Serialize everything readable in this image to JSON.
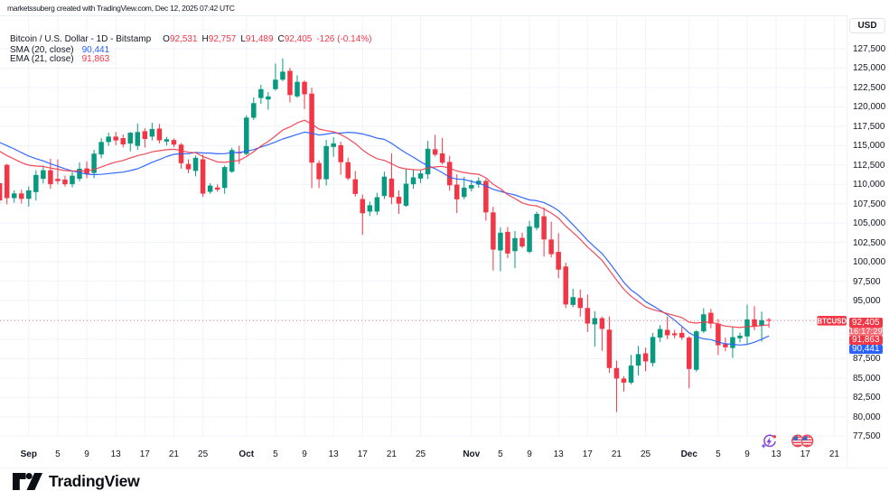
{
  "header": {
    "caption": "marketssuberg created with TradingView.com, Dec 12, 2025 07:42 UTC"
  },
  "legend": {
    "title": "Bitcoin / U.S. Dollar - 1D - Bitstamp",
    "ohlc": [
      {
        "k": "O",
        "v": "92,531"
      },
      {
        "k": "H",
        "v": "92,757"
      },
      {
        "k": "L",
        "v": "91,489"
      },
      {
        "k": "C",
        "v": "92,405"
      }
    ],
    "change": "-126 (-0.14%)",
    "sma_label": "SMA (20, close)",
    "sma_value": "90,441",
    "ema_label": "EMA (21, close)",
    "ema_value": "91,863"
  },
  "badges": {
    "symbol": "BTCUSD",
    "price": "92,405",
    "countdown": "16:17:29",
    "ema": "91,863",
    "sma": "90,441"
  },
  "price_axis": {
    "currency": "USD",
    "ticks": [
      77500,
      80000,
      82500,
      85000,
      87500,
      90000,
      92500,
      95000,
      97500,
      100000,
      102500,
      105000,
      107500,
      110000,
      112500,
      115000,
      117500,
      120000,
      122500,
      125000,
      127500
    ]
  },
  "time_axis": {
    "ticks": [
      {
        "label": "Sep",
        "bar": 4,
        "month": true
      },
      {
        "label": "5",
        "bar": 8
      },
      {
        "label": "9",
        "bar": 12
      },
      {
        "label": "13",
        "bar": 16
      },
      {
        "label": "17",
        "bar": 20
      },
      {
        "label": "21",
        "bar": 24
      },
      {
        "label": "25",
        "bar": 28
      },
      {
        "label": "Oct",
        "bar": 34,
        "month": true
      },
      {
        "label": "5",
        "bar": 38
      },
      {
        "label": "9",
        "bar": 42
      },
      {
        "label": "13",
        "bar": 46
      },
      {
        "label": "17",
        "bar": 50
      },
      {
        "label": "21",
        "bar": 54
      },
      {
        "label": "25",
        "bar": 58
      },
      {
        "label": "Nov",
        "bar": 65,
        "month": true
      },
      {
        "label": "5",
        "bar": 69
      },
      {
        "label": "9",
        "bar": 73
      },
      {
        "label": "13",
        "bar": 77
      },
      {
        "label": "17",
        "bar": 81
      },
      {
        "label": "21",
        "bar": 85
      },
      {
        "label": "25",
        "bar": 89
      },
      {
        "label": "Dec",
        "bar": 95,
        "month": true
      },
      {
        "label": "5",
        "bar": 99
      },
      {
        "label": "9",
        "bar": 103
      },
      {
        "label": "13",
        "bar": 107
      },
      {
        "label": "17",
        "bar": 111
      },
      {
        "label": "21",
        "bar": 115
      }
    ]
  },
  "footer": {
    "brand": "TradingView"
  },
  "icons": {
    "ai_event": "ai-spark-lightning-icon",
    "us_events": "us-flag-economic-events-icon"
  },
  "colors": {
    "up": "#089981",
    "down": "#f23645",
    "sma": "#2962ff",
    "ema": "#f23645",
    "grid": "#f0f3fa",
    "text": "#131722",
    "axis_border": "#e0e3eb",
    "price_badge": "#f23645",
    "countdown_badge": "#f56d76",
    "sma_badge": "#2962ff",
    "background": "#ffffff"
  },
  "chart_data": {
    "type": "candlestick",
    "title": "Bitcoin / U.S. Dollar",
    "exchange": "Bitstamp",
    "interval": "1D",
    "ylabel": "USD",
    "ylim": [
      77500,
      131800
    ],
    "grid": true,
    "legend_position": "top-left",
    "price_line": 92405,
    "dates": [
      "Aug 28",
      "Aug 29",
      "Aug 30",
      "Aug 31",
      "Sep 1",
      "Sep 2",
      "Sep 3",
      "Sep 4",
      "Sep 5",
      "Sep 6",
      "Sep 7",
      "Sep 8",
      "Sep 9",
      "Sep 10",
      "Sep 11",
      "Sep 12",
      "Sep 13",
      "Sep 14",
      "Sep 15",
      "Sep 16",
      "Sep 17",
      "Sep 18",
      "Sep 19",
      "Sep 20",
      "Sep 21",
      "Sep 22",
      "Sep 23",
      "Sep 24",
      "Sep 25",
      "Sep 26",
      "Sep 27",
      "Sep 28",
      "Sep 29",
      "Sep 30",
      "Oct 1",
      "Oct 2",
      "Oct 3",
      "Oct 4",
      "Oct 5",
      "Oct 6",
      "Oct 7",
      "Oct 8",
      "Oct 9",
      "Oct 10",
      "Oct 11",
      "Oct 12",
      "Oct 13",
      "Oct 14",
      "Oct 15",
      "Oct 16",
      "Oct 17",
      "Oct 18",
      "Oct 19",
      "Oct 20",
      "Oct 21",
      "Oct 22",
      "Oct 23",
      "Oct 24",
      "Oct 25",
      "Oct 26",
      "Oct 27",
      "Oct 28",
      "Oct 29",
      "Oct 30",
      "Oct 31",
      "Nov 1",
      "Nov 2",
      "Nov 3",
      "Nov 4",
      "Nov 5",
      "Nov 6",
      "Nov 7",
      "Nov 8",
      "Nov 9",
      "Nov 10",
      "Nov 11",
      "Nov 12",
      "Nov 13",
      "Nov 14",
      "Nov 15",
      "Nov 16",
      "Nov 17",
      "Nov 18",
      "Nov 19",
      "Nov 20",
      "Nov 21",
      "Nov 22",
      "Nov 23",
      "Nov 24",
      "Nov 25",
      "Nov 26",
      "Nov 27",
      "Nov 28",
      "Nov 29",
      "Nov 30",
      "Dec 1",
      "Dec 2",
      "Dec 3",
      "Dec 4",
      "Dec 5",
      "Dec 6",
      "Dec 7",
      "Dec 8",
      "Dec 9",
      "Dec 10",
      "Dec 11",
      "Dec 12"
    ],
    "ohlc": [
      [
        110150,
        110150,
        107500,
        107930
      ],
      [
        112518,
        112650,
        107430,
        108222
      ],
      [
        108222,
        109223,
        107628,
        108828
      ],
      [
        108828,
        109316,
        107523,
        108129
      ],
      [
        108129,
        109724,
        107128,
        109223
      ],
      [
        109000,
        111819,
        107919,
        111214
      ],
      [
        110714,
        112413,
        110121,
        111819
      ],
      [
        111819,
        113310,
        109422,
        110016
      ],
      [
        110714,
        113217,
        110016,
        110423
      ],
      [
        110621,
        111121,
        109724,
        110016
      ],
      [
        110016,
        111621,
        109619,
        111121
      ],
      [
        110714,
        112855,
        110400,
        112017
      ],
      [
        112063,
        112960,
        110771,
        111365
      ],
      [
        111470,
        114461,
        110771,
        113961
      ],
      [
        113856,
        115963,
        113368,
        115463
      ],
      [
        115463,
        116661,
        114962,
        116161
      ],
      [
        116161,
        116754,
        115055,
        115661
      ],
      [
        115963,
        116452,
        114764,
        115160
      ],
      [
        115264,
        116754,
        114263,
        116661
      ],
      [
        114962,
        117848,
        114461,
        116754
      ],
      [
        116859,
        117255,
        114764,
        115859
      ],
      [
        116161,
        117953,
        115661,
        117150
      ],
      [
        117200,
        117800,
        115300,
        115680
      ],
      [
        115522,
        116126,
        115021,
        115824
      ],
      [
        115719,
        115929,
        114823,
        115125
      ],
      [
        115125,
        115323,
        112029,
        112727
      ],
      [
        112634,
        113228,
        111435,
        111935
      ],
      [
        111737,
        113728,
        111040,
        113426
      ],
      [
        113228,
        113833,
        108362,
        108800
      ],
      [
        109037,
        110142,
        108781,
        109840
      ],
      [
        109595,
        110002,
        109048,
        109327
      ],
      [
        109538,
        112436,
        108781,
        112227
      ],
      [
        111633,
        114730,
        111481,
        114427
      ],
      [
        114171,
        114985,
        112634,
        114000
      ],
      [
        113926,
        118900,
        113751,
        118617
      ],
      [
        118594,
        121237,
        118303,
        120480
      ],
      [
        121144,
        122843,
        120385,
        122284
      ],
      [
        120957,
        121900,
        119636,
        121347
      ],
      [
        122284,
        125591,
        122087,
        123507
      ],
      [
        123507,
        126254,
        123321,
        124543
      ],
      [
        124648,
        125021,
        120574,
        121529
      ],
      [
        121347,
        124078,
        121161,
        123227
      ],
      [
        123227,
        123413,
        119723,
        121622
      ],
      [
        121713,
        122470,
        109503,
        112808
      ],
      [
        112738,
        113088,
        109503,
        110655
      ],
      [
        110655,
        115743,
        109852,
        114938
      ],
      [
        114822,
        116090,
        113553,
        115287
      ],
      [
        115055,
        115509,
        111237,
        112855
      ],
      [
        112855,
        113437,
        110539,
        110771
      ],
      [
        110655,
        111702,
        108419,
        108768
      ],
      [
        108106,
        108688,
        103485,
        106266
      ],
      [
        106487,
        107768,
        105917,
        107302
      ],
      [
        106487,
        108921,
        106033,
        108338
      ],
      [
        108500,
        111650,
        108100,
        111000
      ],
      [
        110750,
        113980,
        107440,
        108330
      ],
      [
        108396,
        109211,
        106200,
        107512
      ],
      [
        107244,
        111950,
        107100,
        110086
      ],
      [
        110016,
        111950,
        109434,
        110899
      ],
      [
        110748,
        111784,
        110167,
        111412
      ],
      [
        111295,
        115591,
        110702,
        114590
      ],
      [
        114531,
        116394,
        113600,
        113833
      ],
      [
        113996,
        115987,
        112599,
        112797
      ],
      [
        112890,
        113693,
        109176,
        109875
      ],
      [
        109968,
        111295,
        106278,
        108071
      ],
      [
        108373,
        110969,
        108071,
        109572
      ],
      [
        109468,
        110574,
        109072,
        109910
      ],
      [
        109968,
        110911,
        109572,
        110469
      ],
      [
        110434,
        110667,
        105323,
        106383
      ],
      [
        106383,
        107117,
        98876,
        101576
      ],
      [
        101471,
        104463,
        98783,
        103764
      ],
      [
        103869,
        104509,
        100470,
        101075
      ],
      [
        101378,
        103974,
        99178,
        103066
      ],
      [
        103089,
        103764,
        101774,
        101984
      ],
      [
        101285,
        105278,
        101100,
        104580
      ],
      [
        104382,
        106477,
        104079,
        106186
      ],
      [
        105883,
        107000,
        100679,
        102891
      ],
      [
        102891,
        105185,
        100574,
        100994
      ],
      [
        101285,
        103700,
        97885,
        98992
      ],
      [
        99400,
        99889,
        94046,
        94500
      ],
      [
        94442,
        96537,
        94139,
        95443
      ],
      [
        95338,
        96432,
        92940,
        94046
      ],
      [
        94046,
        95792,
        90932,
        92038
      ],
      [
        91933,
        93633,
        89035,
        92736
      ],
      [
        92736,
        92940,
        88511,
        91340
      ],
      [
        91247,
        92940,
        85672,
        86300
      ],
      [
        86300,
        87254,
        80631,
        84938
      ],
      [
        84938,
        85252,
        83262,
        84414
      ],
      [
        84414,
        87988,
        84205,
        86614
      ],
      [
        86614,
        89140,
        85357,
        88093
      ],
      [
        88198,
        88931,
        85881,
        87150
      ],
      [
        86940,
        90828,
        86510,
        90304
      ],
      [
        90222,
        91828,
        89664,
        91328
      ],
      [
        91224,
        92929,
        90024,
        90525
      ],
      [
        90769,
        91224,
        90129,
        90525
      ],
      [
        90827,
        91619,
        89931,
        90222
      ],
      [
        90222,
        90400,
        83681,
        86172
      ],
      [
        86067,
        91200,
        85823,
        91026
      ],
      [
        91026,
        94018,
        90827,
        93226
      ],
      [
        93424,
        93925,
        91421,
        92027
      ],
      [
        92027,
        92621,
        88000,
        89233
      ],
      [
        89384,
        90222,
        88465,
        88977
      ],
      [
        88884,
        91677,
        87600,
        90280
      ],
      [
        90140,
        90874,
        89582,
        90478
      ],
      [
        90373,
        94470,
        89400,
        92573
      ],
      [
        92573,
        94272,
        91176,
        91677
      ],
      [
        91770,
        93575,
        89700,
        92468
      ],
      [
        92531,
        92757,
        91489,
        92405
      ]
    ],
    "series": [
      {
        "name": "SMA (20, close)",
        "values": [
          115404,
          114989,
          114576,
          114099,
          113648,
          113313,
          113023,
          112659,
          112331,
          111998,
          111736,
          111535,
          111316,
          111253,
          111290,
          111387,
          111484,
          111581,
          111778,
          112006,
          112404,
          112850,
          113193,
          113577,
          113872,
          113948,
          113954,
          114124,
          114043,
          114034,
          113945,
          113955,
          114108,
          114110,
          114268,
          114484,
          114815,
          115124,
          115467,
          115856,
          116140,
          116444,
          116741,
          116590,
          116366,
          116477,
          116645,
          116616,
          116715,
          116661,
          116508,
          116262,
          115957,
          115807,
          115293,
          114644,
          114035,
          113512,
          112907,
          112410,
          112025,
          111503,
          110916,
          110679,
          110625,
          110374,
          110133,
          109809,
          109349,
          109099,
          108840,
          108628,
          108310,
          107989,
          107882,
          107651,
          107196,
          106601,
          105755,
          104798,
          103809,
          102771,
          101914,
          101077,
          99914,
          98665,
          97362,
          96374,
          95700,
          94869,
          94330,
          93744,
          93171,
          92468,
          91670,
          90834,
          90335,
          90065,
          89959,
          89666,
          89430,
          89359,
          89264,
          89343,
          89630,
          90024,
          90441
        ]
      },
      {
        "name": "EMA (21, close)",
        "values": [
          114259,
          113710,
          113266,
          112799,
          112474,
          112360,
          112311,
          112102,
          111949,
          111774,
          111714,
          111742,
          111708,
          111912,
          112235,
          112592,
          112871,
          113079,
          113405,
          113709,
          113905,
          114200,
          114334,
          114470,
          114529,
          114365,
          114144,
          114079,
          113599,
          113257,
          112900,
          112839,
          112983,
          113076,
          113580,
          114207,
          114941,
          115523,
          116249,
          117003,
          117415,
          117943,
          118278,
          117780,
          117133,
          116933,
          116783,
          116426,
          115912,
          115263,
          114445,
          113795,
          113299,
          113090,
          112658,
          112190,
          111999,
          111899,
          111854,
          112103,
          112260,
          112309,
          112088,
          111723,
          111527,
          111380,
          111297,
          110851,
          110007,
          109440,
          108679,
          108169,
          107607,
          107332,
          107227,
          106833,
          106302,
          105638,
          104625,
          103791,
          102905,
          101917,
          101082,
          100197,
          98933,
          97661,
          96457,
          95562,
          94883,
          94180,
          93828,
          93600,
          93321,
          93067,
          92808,
          92205,
          92098,
          92216,
          92217,
          91965,
          91714,
          91606,
          91527,
          91647,
          91676,
          91776,
          91863
        ]
      }
    ]
  }
}
